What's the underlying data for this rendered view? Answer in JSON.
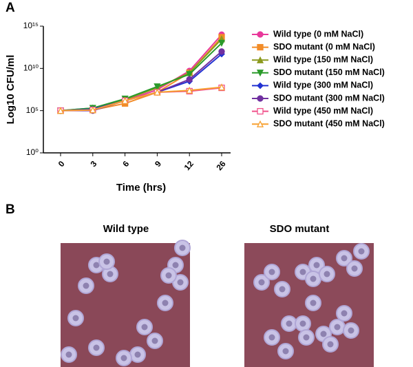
{
  "panels": [
    "A",
    "B"
  ],
  "chart_data": {
    "type": "line",
    "y_label": "Log10 CFU/ml",
    "x_label": "Time (hrs)",
    "categories": [
      "0",
      "3",
      "6",
      "9",
      "12",
      "26"
    ],
    "y_scale": "log",
    "ylim": [
      1,
      1000000000000000.0
    ],
    "yticks": [
      {
        "value": 1,
        "label": "10⁰"
      },
      {
        "value": 100000,
        "label": "10⁵"
      },
      {
        "value": 10000000000,
        "label": "10¹⁰"
      },
      {
        "value": 1000000000000000,
        "label": "10¹⁵"
      }
    ],
    "legend": "right",
    "series": [
      {
        "name": "Wild type (0 mM NaCl)",
        "color": "#e8389a",
        "marker": "circle",
        "values": [
          100000,
          150000,
          1500000,
          30000000,
          5000000000,
          100000000000000
        ]
      },
      {
        "name": "SDO mutant (0 mM NaCl)",
        "color": "#f28c28",
        "marker": "square",
        "values": [
          100000,
          120000,
          700000,
          15000000,
          3000000000,
          50000000000000
        ]
      },
      {
        "name": "Wild type (150 mM NaCl)",
        "color": "#8c9a1e",
        "marker": "triangle",
        "values": [
          100000,
          200000,
          2000000,
          50000000,
          3000000000,
          30000000000000
        ]
      },
      {
        "name": "SDO mutant (150 mM NaCl)",
        "color": "#2a9a2a",
        "marker": "triangle-down",
        "values": [
          100000,
          200000,
          2500000,
          70000000,
          2000000000,
          10000000000000
        ]
      },
      {
        "name": "Wild type (300 mM NaCl)",
        "color": "#2232d2",
        "marker": "diamond",
        "values": [
          100000,
          150000,
          1500000,
          15000000,
          300000000,
          500000000000
        ]
      },
      {
        "name": "SDO mutant (300 mM NaCl)",
        "color": "#7030a0",
        "marker": "circle",
        "values": [
          100000,
          100000,
          1500000,
          15000000,
          500000000,
          1000000000000
        ]
      },
      {
        "name": "Wild type (450 mM NaCl)",
        "color": "#f0508a",
        "marker": "square-open",
        "values": [
          100000,
          120000,
          1500000,
          15000000,
          20000000,
          50000000
        ]
      },
      {
        "name": "SDO mutant (450 mM NaCl)",
        "color": "#f7a030",
        "marker": "triangle-open",
        "values": [
          100000,
          120000,
          1500000,
          15000000,
          25000000,
          60000000
        ]
      }
    ]
  },
  "photos": [
    {
      "title": "Wild type"
    },
    {
      "title": "SDO mutant"
    }
  ]
}
